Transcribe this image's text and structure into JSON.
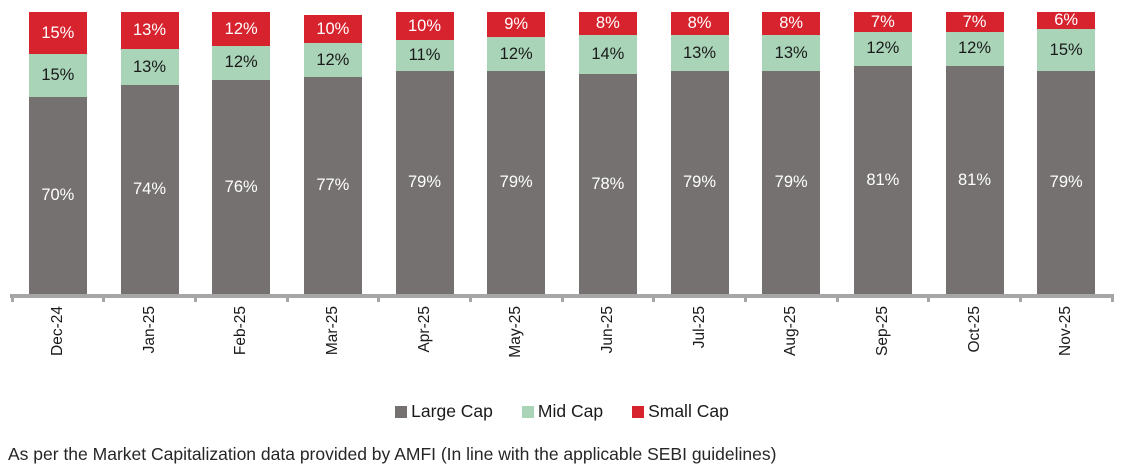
{
  "chart_data": {
    "type": "bar",
    "subtype": "stacked-100-percent",
    "title": "",
    "unit": "%",
    "categories": [
      "Dec-24",
      "Jan-25",
      "Feb-25",
      "Mar-25",
      "Apr-25",
      "May-25",
      "Jun-25",
      "Jul-25",
      "Aug-25",
      "Sep-25",
      "Oct-25",
      "Nov-25"
    ],
    "series": [
      {
        "name": "Large Cap",
        "color": "#767171",
        "label_color": "#FFFFFF",
        "values": [
          70,
          74,
          76,
          77,
          79,
          79,
          78,
          79,
          79,
          81,
          81,
          79
        ]
      },
      {
        "name": "Mid Cap",
        "color": "#A9D4B8",
        "label_color": "#1A1A1A",
        "values": [
          15,
          13,
          12,
          12,
          11,
          12,
          14,
          13,
          13,
          12,
          12,
          15
        ]
      },
      {
        "name": "Small Cap",
        "color": "#D7232E",
        "label_color": "#FFFFFF",
        "values": [
          15,
          13,
          12,
          10,
          10,
          9,
          8,
          8,
          8,
          7,
          7,
          6
        ]
      }
    ],
    "ylim": [
      0,
      100
    ],
    "grid": false,
    "legend_position": "bottom",
    "axis_color": "#A6A6A6"
  },
  "footnote": {
    "text": "As per the Market Capitalization data provided by AMFI (In line with the applicable SEBI guidelines)"
  }
}
